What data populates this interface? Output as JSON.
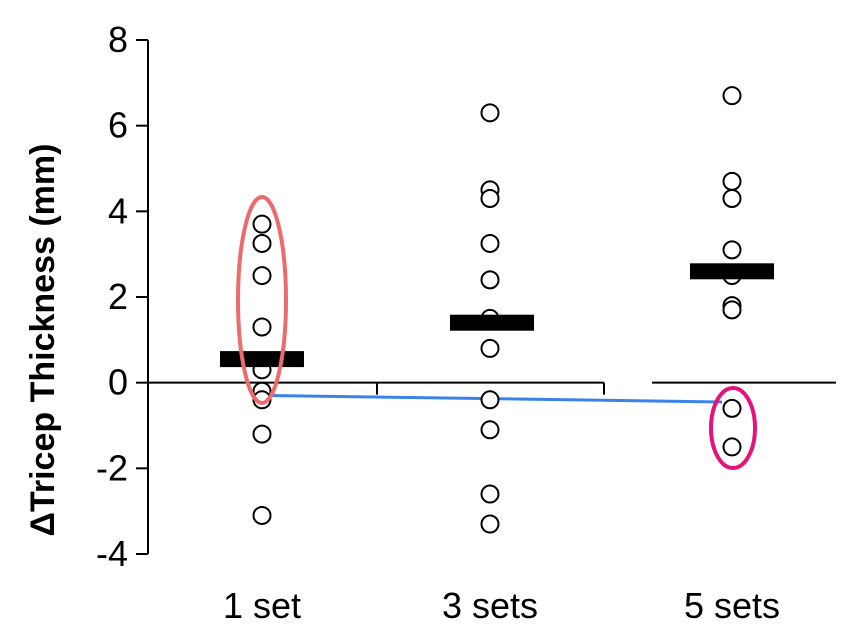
{
  "chart_data": {
    "type": "scatter",
    "ylabel": "ΔTricep Thickness (mm)",
    "ylim": [
      -4,
      8
    ],
    "yticks": [
      8,
      6,
      4,
      2,
      0,
      -2,
      -4
    ],
    "ytick_labels": [
      "8",
      "6",
      "4",
      "2",
      "0",
      "-2",
      "-4"
    ],
    "categories": [
      "1 set",
      "3 sets",
      "5 sets"
    ],
    "grid": false,
    "series": [
      {
        "category": "1 set",
        "values": [
          3.7,
          3.25,
          2.5,
          1.3,
          0.3,
          -0.2,
          -0.4,
          -1.2,
          -3.1
        ],
        "mean": 0.55
      },
      {
        "category": "3 sets",
        "values": [
          6.3,
          4.5,
          4.3,
          3.25,
          2.4,
          1.5,
          0.8,
          -0.4,
          -1.1,
          -2.6,
          -3.3
        ],
        "mean": 1.4
      },
      {
        "category": "5 sets",
        "values": [
          6.7,
          4.7,
          4.3,
          3.1,
          2.5,
          1.8,
          1.7,
          -0.6,
          -1.5
        ],
        "mean": 2.6
      }
    ],
    "annotations": [
      {
        "type": "ellipse",
        "around": "1 set points from -0.4 to 3.7",
        "color": "#ec6b6b"
      },
      {
        "type": "ellipse",
        "around": "5 sets points -0.6 and -1.5",
        "color": "#e4137b"
      },
      {
        "type": "line",
        "from": "1 set at -0.3",
        "to": "5 sets at -0.45",
        "color": "#3b82e6"
      }
    ],
    "colors": {
      "points": "#000000",
      "mean_bar": "#000000",
      "ellipse_left": "#ec6b6b",
      "ellipse_right": "#e4137b",
      "trend_line": "#3b82e6"
    }
  }
}
